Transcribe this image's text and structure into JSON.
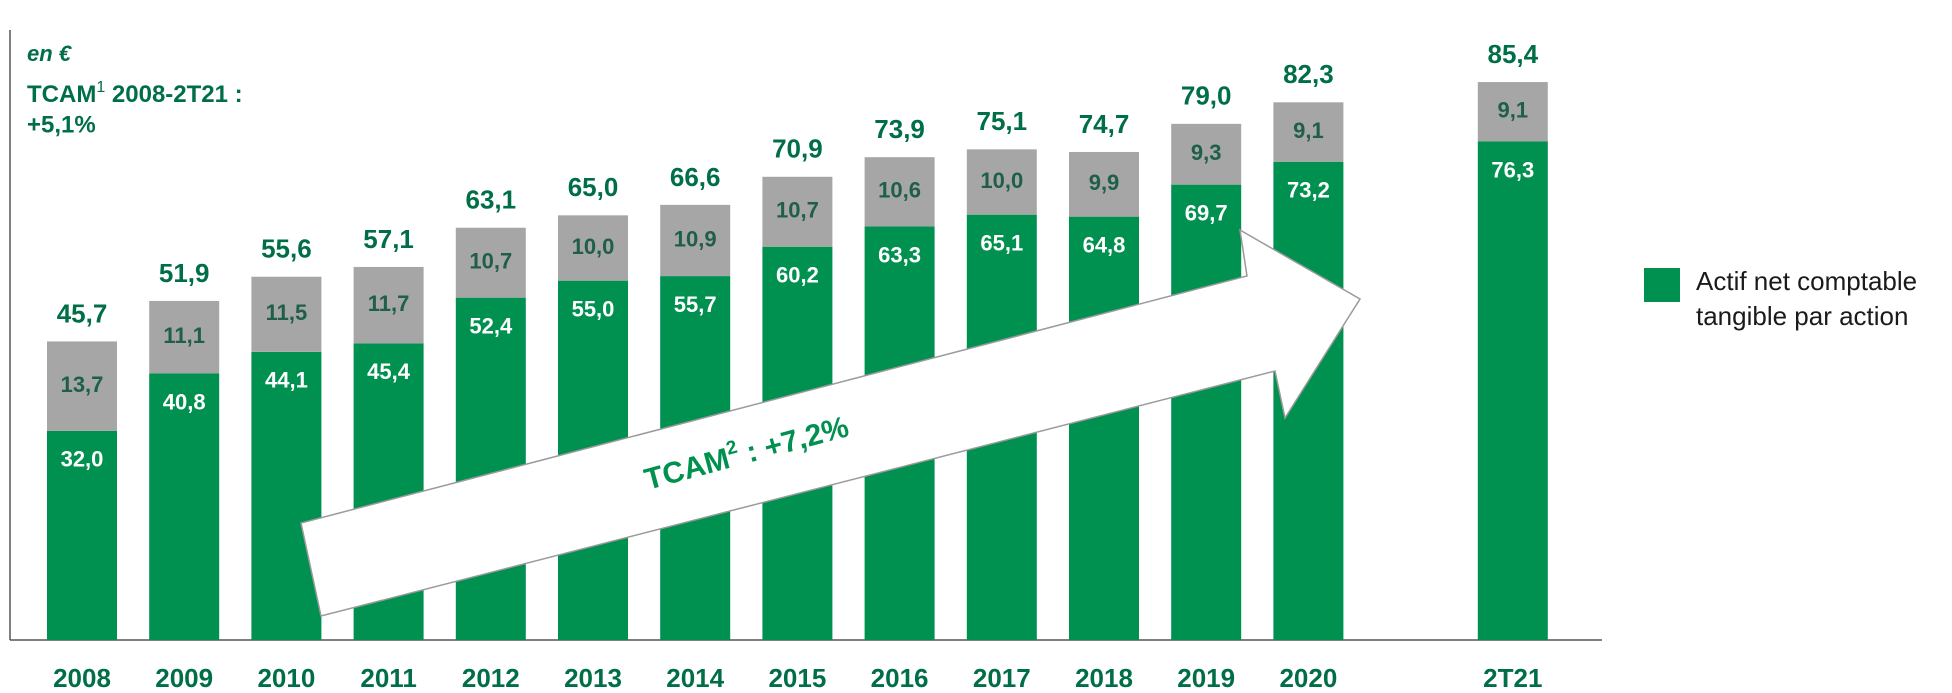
{
  "chart_data": {
    "type": "stacked-bar",
    "annotations": {
      "unit": "en €",
      "cagr_total": {
        "label": "TCAM",
        "sup": "1",
        "text": " 2008-2T21 :",
        "value": "+5,1%"
      },
      "cagr_tangible": {
        "label": "TCAM",
        "sup": "2",
        "text": " : +7,2%"
      }
    },
    "categories": [
      "2008",
      "2009",
      "2010",
      "2011",
      "2012",
      "2013",
      "2014",
      "2015",
      "2016",
      "2017",
      "2018",
      "2019",
      "2020",
      "2T21"
    ],
    "series": [
      {
        "name": "Actif net comptable tangible par action",
        "color": "#009150",
        "values": [
          32.0,
          40.8,
          44.1,
          45.4,
          52.4,
          55.0,
          55.7,
          60.2,
          63.3,
          65.1,
          64.8,
          69.7,
          73.2,
          76.3
        ],
        "value_labels": [
          "32,0",
          "40,8",
          "44,1",
          "45,4",
          "52,4",
          "55,0",
          "55,7",
          "60,2",
          "63,3",
          "65,1",
          "64,8",
          "69,7",
          "73,2",
          "76,3"
        ]
      },
      {
        "color": "#a6a6a6",
        "values": [
          13.7,
          11.1,
          11.5,
          11.7,
          10.7,
          10.0,
          10.9,
          10.7,
          10.6,
          10.0,
          9.9,
          9.3,
          9.1,
          9.1
        ],
        "value_labels": [
          "13,7",
          "11,1",
          "11,5",
          "11,7",
          "10,7",
          "10,0",
          "10,9",
          "10,7",
          "10,6",
          "10,0",
          "9,9",
          "9,3",
          "9,1",
          "9,1"
        ]
      }
    ],
    "totals": [
      45.7,
      51.9,
      55.6,
      57.1,
      63.1,
      65.0,
      66.6,
      70.9,
      73.9,
      75.1,
      74.7,
      79.0,
      82.3,
      85.4
    ],
    "total_labels": [
      "45,7",
      "51,9",
      "55,6",
      "57,1",
      "63,1",
      "65,0",
      "66,6",
      "70,9",
      "73,9",
      "75,1",
      "74,7",
      "79,0",
      "82,3",
      "85,4"
    ],
    "ylim": [
      0,
      90
    ]
  }
}
